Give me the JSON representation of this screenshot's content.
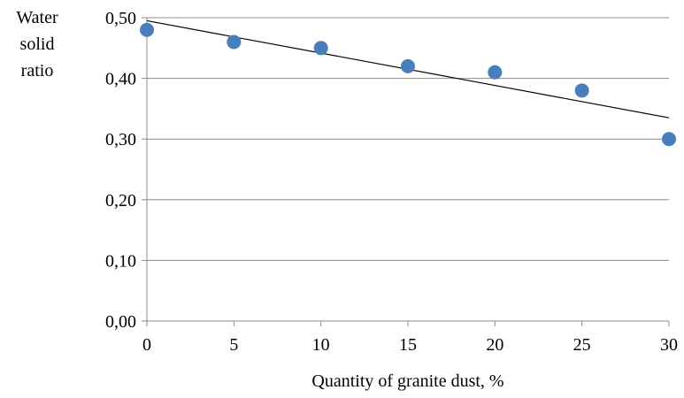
{
  "chart_data": {
    "type": "scatter",
    "ylabel_lines": [
      "Water",
      "solid",
      "ratio"
    ],
    "xlabel": "Quantity of granite dust, %",
    "xlim": [
      0,
      30
    ],
    "ylim": [
      0,
      0.5
    ],
    "x_ticks": [
      0,
      5,
      10,
      15,
      20,
      25,
      30
    ],
    "x_tick_labels": [
      "0",
      "5",
      "10",
      "15",
      "20",
      "25",
      "30"
    ],
    "y_ticks": [
      0,
      0.1,
      0.2,
      0.3,
      0.4,
      0.5
    ],
    "y_tick_labels": [
      "0,00",
      "0,10",
      "0,20",
      "0,30",
      "0,40",
      "0,50"
    ],
    "grid": "horizontal",
    "series": [
      {
        "x": [
          0,
          5,
          10,
          15,
          20,
          25,
          30
        ],
        "y": [
          0.48,
          0.46,
          0.45,
          0.42,
          0.41,
          0.38,
          0.3
        ],
        "color": "#4a7ebb"
      }
    ],
    "trendline": {
      "type": "linear",
      "x": [
        0,
        30
      ],
      "y": [
        0.495,
        0.335
      ],
      "color": "#000000"
    }
  }
}
